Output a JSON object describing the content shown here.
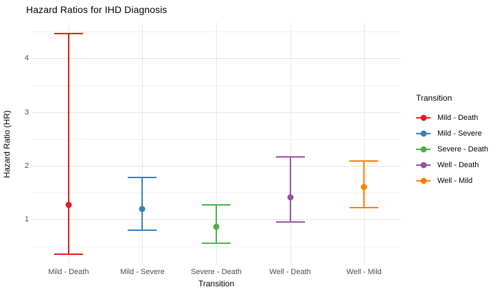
{
  "chart_data": {
    "type": "scatter",
    "subtype": "pointrange-errorbar",
    "title": "Hazard Ratios for IHD Diagnosis",
    "xlabel": "Transition",
    "ylabel": "Hazard Ratio (HR)",
    "categories": [
      "Mild - Death",
      "Mild - Severe",
      "Severe - Death",
      "Well - Death",
      "Well - Mild"
    ],
    "series": [
      {
        "name": "Mild - Death",
        "color": "#E41A1C",
        "hr": 1.27,
        "ci_low": 0.35,
        "ci_high": 4.46
      },
      {
        "name": "Mild - Severe",
        "color": "#377EB8",
        "hr": 1.2,
        "ci_low": 0.8,
        "ci_high": 1.79
      },
      {
        "name": "Severe - Death",
        "color": "#4DAF4A",
        "hr": 0.86,
        "ci_low": 0.56,
        "ci_high": 1.28
      },
      {
        "name": "Well - Death",
        "color": "#984EA3",
        "hr": 1.42,
        "ci_low": 0.95,
        "ci_high": 2.17
      },
      {
        "name": "Well - Mild",
        "color": "#FF7F00",
        "hr": 1.6,
        "ci_low": 1.22,
        "ci_high": 2.09
      }
    ],
    "y_axis": {
      "ticks_major": [
        1,
        2,
        3,
        4
      ],
      "ticks_minor": [
        0.5,
        1.5,
        2.5,
        3.5,
        4.5
      ],
      "range": [
        0.15,
        4.67
      ]
    },
    "legend": {
      "title": "Transition",
      "position": "right",
      "entries": [
        {
          "label": "Mild - Death",
          "color": "#E41A1C"
        },
        {
          "label": "Mild - Severe",
          "color": "#377EB8"
        },
        {
          "label": "Severe - Death",
          "color": "#4DAF4A"
        },
        {
          "label": "Well - Death",
          "color": "#984EA3"
        },
        {
          "label": "Well - Mild",
          "color": "#FF7F00"
        }
      ]
    },
    "grid": true,
    "theme": {
      "background": "#FFFFFF",
      "grid_major": "#E3E3E3",
      "grid_minor": "#F0F0F0",
      "axis_text": "#4D4D4D",
      "text": "#000000"
    }
  }
}
